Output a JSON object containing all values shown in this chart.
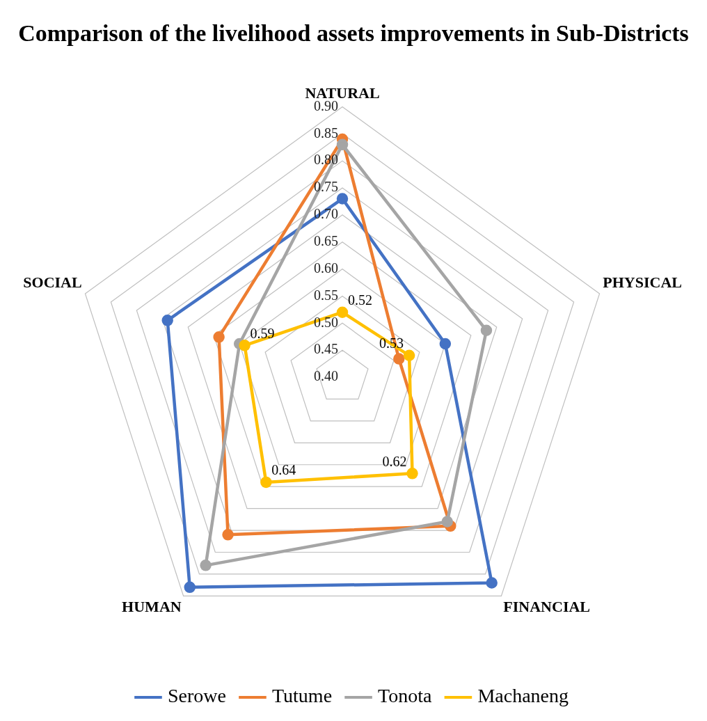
{
  "chart_data": {
    "type": "radar",
    "title": "Comparison of the livelihood assets improvements in Sub-Districts",
    "categories": [
      "NATURAL",
      "PHYSICAL",
      "FINANCIAL",
      "HUMAN",
      "SOCIAL"
    ],
    "series": [
      {
        "name": "Serowe",
        "color": "#4472c4",
        "values": [
          0.73,
          0.6,
          0.87,
          0.88,
          0.74
        ]
      },
      {
        "name": "Tutume",
        "color": "#ed7d31",
        "values": [
          0.84,
          0.51,
          0.74,
          0.76,
          0.64
        ]
      },
      {
        "name": "Tonota",
        "color": "#a5a5a5",
        "values": [
          0.83,
          0.68,
          0.73,
          0.83,
          0.6
        ]
      },
      {
        "name": "Machaneng",
        "color": "#ffc000",
        "values": [
          0.52,
          0.53,
          0.62,
          0.64,
          0.59
        ],
        "value_labels": [
          "0.52",
          "0.53",
          "0.62",
          "0.64",
          "0.59"
        ]
      }
    ],
    "ylim": [
      0.4,
      0.9
    ],
    "yticks": [
      {
        "value": 0.4,
        "label": "0.40"
      },
      {
        "value": 0.45,
        "label": "0.45"
      },
      {
        "value": 0.5,
        "label": "0.50"
      },
      {
        "value": 0.55,
        "label": "0.55"
      },
      {
        "value": 0.6,
        "label": "0.60"
      },
      {
        "value": 0.65,
        "label": "0.65"
      },
      {
        "value": 0.7,
        "label": "0.70"
      },
      {
        "value": 0.75,
        "label": "0.75"
      },
      {
        "value": 0.8,
        "label": "0.80"
      },
      {
        "value": 0.85,
        "label": "0.85"
      },
      {
        "value": 0.9,
        "label": "0.90"
      }
    ],
    "grid": true,
    "legend": "bottom",
    "marker": "circle",
    "line_style": "solid"
  }
}
